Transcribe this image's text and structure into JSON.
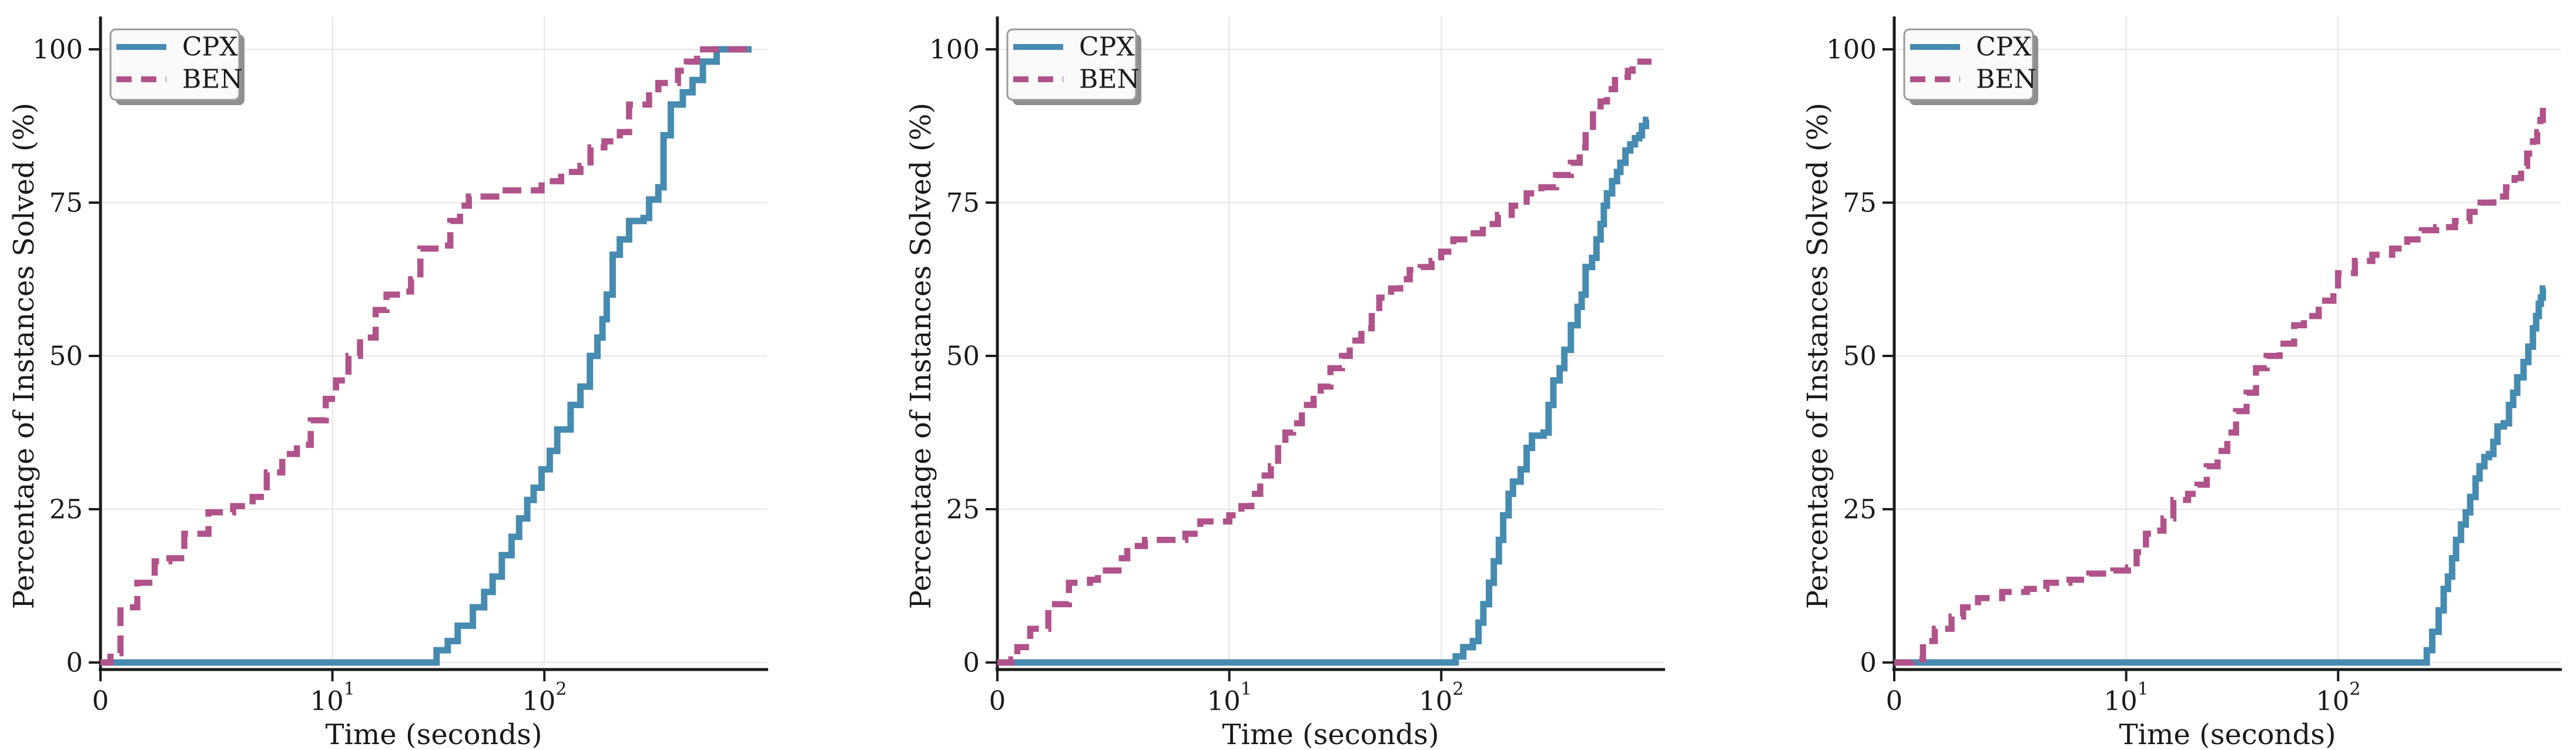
{
  "figure": {
    "ylabel": "Percentage of Instances Solved (%)",
    "xlabel": "Time (seconds)",
    "legend": [
      {
        "label": "CPX",
        "color": "#468bb0",
        "line_style": "solid"
      },
      {
        "label": "BEN",
        "color": "#b0538a",
        "line_style": "dashed"
      }
    ],
    "y_ticks": [
      "0",
      "25",
      "50",
      "75",
      "100"
    ],
    "x_ticks": [
      {
        "label": "0"
      },
      {
        "base": "10",
        "exp": "1"
      },
      {
        "base": "10",
        "exp": "2"
      }
    ],
    "colors": {
      "cpx": "#468bb0",
      "ben": "#b0538a",
      "grid": "#e7e7e7",
      "spine": "#1c1c1c",
      "text": "#1a1a1a",
      "legend_bg": "#fafafa",
      "legend_border": "#9a9a9a",
      "legend_shadow": "#8f8f8f"
    }
  },
  "chart_data": [
    {
      "type": "line",
      "panel": "left",
      "title": "",
      "xlabel": "Time (seconds)",
      "ylabel": "Percentage of Instances Solved (%)",
      "x_scale": "symlog",
      "xlim": [
        0,
        1000
      ],
      "ylim": [
        0,
        100
      ],
      "grid": true,
      "legend_position": "upper left",
      "series": [
        {
          "name": "CPX",
          "color": "#468bb0",
          "line_style": "solid",
          "points": [
            [
              0,
              0
            ],
            [
              28,
              0
            ],
            [
              31,
              2
            ],
            [
              35,
              3.5
            ],
            [
              39,
              6
            ],
            [
              46,
              9
            ],
            [
              52,
              11.5
            ],
            [
              57,
              14
            ],
            [
              63,
              17.5
            ],
            [
              70,
              20.5
            ],
            [
              76,
              23.5
            ],
            [
              83,
              26.5
            ],
            [
              89,
              28.5
            ],
            [
              97,
              31.5
            ],
            [
              106,
              34.5
            ],
            [
              115,
              38
            ],
            [
              133,
              42
            ],
            [
              148,
              45
            ],
            [
              164,
              50
            ],
            [
              178,
              53
            ],
            [
              188,
              56
            ],
            [
              197,
              60
            ],
            [
              210,
              66.5
            ],
            [
              227,
              69
            ],
            [
              251,
              72
            ],
            [
              294,
              72.5
            ],
            [
              312,
              75.5
            ],
            [
              345,
              77.5
            ],
            [
              365,
              86
            ],
            [
              395,
              91
            ],
            [
              450,
              93
            ],
            [
              500,
              95
            ],
            [
              560,
              98
            ],
            [
              650,
              100
            ],
            [
              950,
              100
            ]
          ]
        },
        {
          "name": "BEN",
          "color": "#b0538a",
          "line_style": "dashed",
          "points": [
            [
              0,
              0
            ],
            [
              0.5,
              1.5
            ],
            [
              1,
              9
            ],
            [
              1.2,
              13
            ],
            [
              1.45,
              16.5
            ],
            [
              1.7,
              17
            ],
            [
              2,
              21
            ],
            [
              2.6,
              24.5
            ],
            [
              3.4,
              25.5
            ],
            [
              4.2,
              27
            ],
            [
              4.9,
              31
            ],
            [
              5.8,
              34
            ],
            [
              6.8,
              35.5
            ],
            [
              7.9,
              39.5
            ],
            [
              9.3,
              43
            ],
            [
              10.4,
              46
            ],
            [
              11.9,
              50
            ],
            [
              13.5,
              53
            ],
            [
              16,
              57.5
            ],
            [
              18,
              60
            ],
            [
              21,
              60.5
            ],
            [
              23.5,
              62.5
            ],
            [
              26,
              67.5
            ],
            [
              33,
              68
            ],
            [
              36,
              72
            ],
            [
              40,
              74.5
            ],
            [
              44,
              76
            ],
            [
              63,
              77
            ],
            [
              97,
              78.5
            ],
            [
              120,
              80
            ],
            [
              148,
              81
            ],
            [
              165,
              84
            ],
            [
              192,
              85
            ],
            [
              227,
              86.5
            ],
            [
              251,
              91
            ],
            [
              312,
              92.5
            ],
            [
              345,
              94.5
            ],
            [
              427,
              96.5
            ],
            [
              470,
              98
            ],
            [
              525,
              100
            ],
            [
              950,
              100
            ]
          ]
        }
      ]
    },
    {
      "type": "line",
      "panel": "middle",
      "title": "",
      "xlabel": "Time (seconds)",
      "ylabel": "Percentage of Instances Solved (%)",
      "x_scale": "symlog",
      "xlim": [
        0,
        1000
      ],
      "ylim": [
        0,
        100
      ],
      "grid": true,
      "legend_position": "upper left",
      "series": [
        {
          "name": "CPX",
          "color": "#468bb0",
          "line_style": "solid",
          "points": [
            [
              0,
              0
            ],
            [
              114,
              0
            ],
            [
              117,
              1
            ],
            [
              127,
              2.5
            ],
            [
              141,
              3.5
            ],
            [
              150,
              6.5
            ],
            [
              158,
              9.5
            ],
            [
              168,
              13
            ],
            [
              177,
              16.5
            ],
            [
              187,
              20
            ],
            [
              196,
              24
            ],
            [
              208,
              27.5
            ],
            [
              218,
              29.5
            ],
            [
              237,
              31.5
            ],
            [
              253,
              35
            ],
            [
              268,
              37
            ],
            [
              304,
              37.5
            ],
            [
              321,
              42
            ],
            [
              338,
              46
            ],
            [
              362,
              48
            ],
            [
              381,
              51
            ],
            [
              409,
              55
            ],
            [
              440,
              58
            ],
            [
              460,
              60
            ],
            [
              480,
              64.5
            ],
            [
              515,
              66
            ],
            [
              540,
              69
            ],
            [
              565,
              71.5
            ],
            [
              585,
              74.5
            ],
            [
              605,
              76.5
            ],
            [
              640,
              78.5
            ],
            [
              675,
              80
            ],
            [
              700,
              81.5
            ],
            [
              740,
              83.5
            ],
            [
              780,
              84.5
            ],
            [
              820,
              85.5
            ],
            [
              860,
              86
            ],
            [
              885,
              87.5
            ],
            [
              925,
              88.5
            ],
            [
              950,
              88.5
            ]
          ]
        },
        {
          "name": "BEN",
          "color": "#b0538a",
          "line_style": "dashed",
          "points": [
            [
              0,
              0
            ],
            [
              0.7,
              0.5
            ],
            [
              1,
              2.5
            ],
            [
              1.15,
              5.5
            ],
            [
              1.4,
              9.5
            ],
            [
              1.75,
              13
            ],
            [
              2.2,
              13.5
            ],
            [
              2.4,
              15
            ],
            [
              3,
              17
            ],
            [
              3.3,
              19
            ],
            [
              4,
              20
            ],
            [
              6.2,
              21
            ],
            [
              7.3,
              23
            ],
            [
              10,
              24
            ],
            [
              11.4,
              25.5
            ],
            [
              12.7,
              27.5
            ],
            [
              14,
              30.5
            ],
            [
              15.7,
              32
            ],
            [
              17,
              35.5
            ],
            [
              18.4,
              37.5
            ],
            [
              20,
              39
            ],
            [
              22,
              42
            ],
            [
              25,
              43
            ],
            [
              27,
              45
            ],
            [
              30,
              48
            ],
            [
              34,
              50
            ],
            [
              37,
              52.5
            ],
            [
              42,
              54.5
            ],
            [
              47,
              56.5
            ],
            [
              51,
              59.5
            ],
            [
              58,
              61
            ],
            [
              64,
              62.5
            ],
            [
              71,
              64
            ],
            [
              80,
              64.5
            ],
            [
              90,
              65.5
            ],
            [
              100,
              67
            ],
            [
              114,
              69
            ],
            [
              134,
              70
            ],
            [
              157,
              71.5
            ],
            [
              185,
              73
            ],
            [
              215,
              74.5
            ],
            [
              253,
              76.5
            ],
            [
              297,
              77.5
            ],
            [
              348,
              79.5
            ],
            [
              409,
              81.5
            ],
            [
              450,
              84
            ],
            [
              480,
              86.5
            ],
            [
              520,
              90
            ],
            [
              565,
              91.5
            ],
            [
              605,
              93.5
            ],
            [
              660,
              95
            ],
            [
              730,
              95.5
            ],
            [
              760,
              96.5
            ],
            [
              800,
              98
            ],
            [
              950,
              98.5
            ]
          ]
        }
      ]
    },
    {
      "type": "line",
      "panel": "right",
      "title": "",
      "xlabel": "Time (seconds)",
      "ylabel": "Percentage of Instances Solved (%)",
      "x_scale": "symlog",
      "xlim": [
        0,
        1000
      ],
      "ylim": [
        0,
        100
      ],
      "grid": true,
      "legend_position": "upper left",
      "series": [
        {
          "name": "CPX",
          "color": "#468bb0",
          "line_style": "solid",
          "points": [
            [
              0,
              0
            ],
            [
              252,
              0
            ],
            [
              262,
              2
            ],
            [
              278,
              5
            ],
            [
              298,
              8.5
            ],
            [
              315,
              12
            ],
            [
              330,
              14
            ],
            [
              345,
              17
            ],
            [
              360,
              20
            ],
            [
              380,
              22.5
            ],
            [
              400,
              24.5
            ],
            [
              420,
              27
            ],
            [
              445,
              30
            ],
            [
              465,
              32
            ],
            [
              490,
              33.5
            ],
            [
              515,
              34
            ],
            [
              540,
              36
            ],
            [
              565,
              38.5
            ],
            [
              605,
              39
            ],
            [
              640,
              42
            ],
            [
              670,
              44
            ],
            [
              700,
              46.5
            ],
            [
              750,
              49
            ],
            [
              790,
              51.5
            ],
            [
              830,
              54.5
            ],
            [
              860,
              56.5
            ],
            [
              885,
              58.5
            ],
            [
              905,
              59.5
            ],
            [
              925,
              61
            ],
            [
              950,
              61
            ]
          ]
        },
        {
          "name": "BEN",
          "color": "#b0538a",
          "line_style": "dashed",
          "points": [
            [
              0,
              0
            ],
            [
              0.9,
              0.5
            ],
            [
              1.1,
              3.5
            ],
            [
              1.25,
              5.5
            ],
            [
              1.5,
              7.5
            ],
            [
              1.7,
              9
            ],
            [
              2,
              10.5
            ],
            [
              2.6,
              11.5
            ],
            [
              3.4,
              12
            ],
            [
              4.2,
              13
            ],
            [
              5.4,
              13.5
            ],
            [
              6.7,
              14.5
            ],
            [
              8.7,
              15
            ],
            [
              10.2,
              15.5
            ],
            [
              11.2,
              18
            ],
            [
              12.4,
              21
            ],
            [
              13.7,
              21.5
            ],
            [
              15,
              23.5
            ],
            [
              16.7,
              26.5
            ],
            [
              19.6,
              27.5
            ],
            [
              21.7,
              29
            ],
            [
              24,
              32
            ],
            [
              27,
              34.5
            ],
            [
              30,
              37.5
            ],
            [
              33,
              41
            ],
            [
              37,
              44
            ],
            [
              41,
              48
            ],
            [
              46,
              50
            ],
            [
              53,
              52
            ],
            [
              62,
              55
            ],
            [
              69,
              56.5
            ],
            [
              81,
              59
            ],
            [
              95,
              61
            ],
            [
              100,
              63.5
            ],
            [
              120,
              65.5
            ],
            [
              145,
              66.5
            ],
            [
              180,
              67.5
            ],
            [
              212,
              69
            ],
            [
              248,
              70.5
            ],
            [
              290,
              71
            ],
            [
              356,
              72
            ],
            [
              417,
              73.5
            ],
            [
              470,
              75
            ],
            [
              540,
              76
            ],
            [
              620,
              77.5
            ],
            [
              680,
              79
            ],
            [
              730,
              81
            ],
            [
              780,
              83
            ],
            [
              830,
              85
            ],
            [
              870,
              86.5
            ],
            [
              900,
              88.5
            ],
            [
              925,
              91.5
            ],
            [
              950,
              91.5
            ]
          ]
        }
      ]
    }
  ]
}
